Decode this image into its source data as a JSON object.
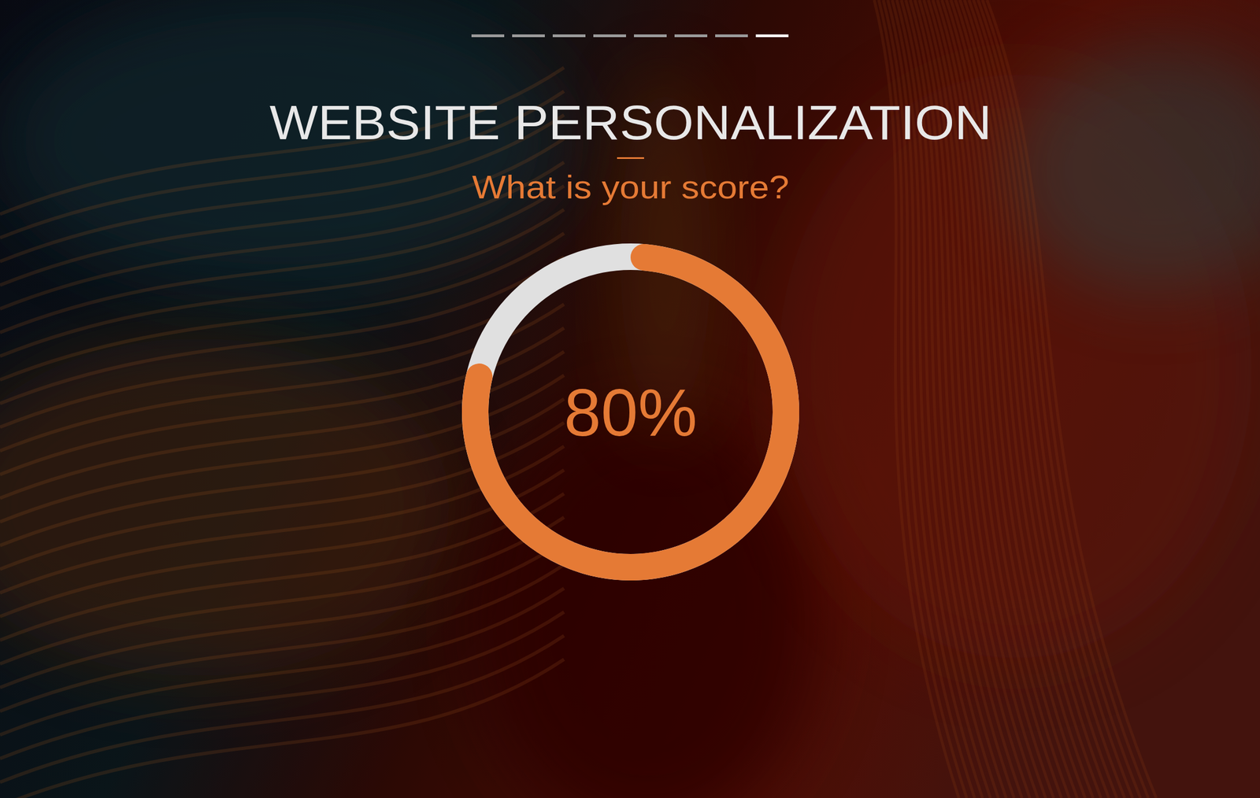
{
  "chart_data": {
    "type": "donut",
    "title": "WEBSITE PERSONALIZATION",
    "subtitle": "What is your score?",
    "values": [
      80
    ],
    "value_labels": [
      "80%"
    ],
    "data_labels": true,
    "color": "#e57a35",
    "ylim": [
      0,
      100
    ]
  }
}
